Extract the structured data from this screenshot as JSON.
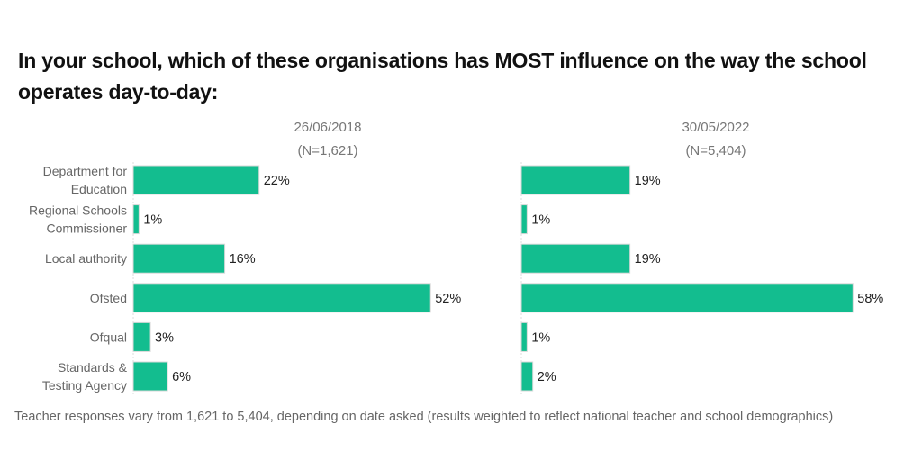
{
  "title": "In your school, which of these organisations has MOST influence on the way the school operates day-to-day:",
  "footer": "Teacher responses vary from 1,621 to 5,404, depending on date asked (results weighted to reflect national teacher and school demographics)",
  "colors": {
    "bar": "#13bd8f",
    "bar_border": "#d9d9d9"
  },
  "chart_data": [
    {
      "type": "bar",
      "orientation": "horizontal",
      "title": "26/06/2018",
      "subtitle": "(N=1,621)",
      "categories": [
        [
          "Department for",
          "Education"
        ],
        [
          "Regional Schools",
          "Commissioner"
        ],
        [
          "Local authority"
        ],
        [
          "Ofsted"
        ],
        [
          "Ofqual"
        ],
        [
          "Standards &",
          "Testing Agency"
        ]
      ],
      "values": [
        22,
        1,
        16,
        52,
        3,
        6
      ],
      "labels": [
        "22%",
        "1%",
        "16%",
        "52%",
        "3%",
        "6%"
      ],
      "unit": "%",
      "grid": false
    },
    {
      "type": "bar",
      "orientation": "horizontal",
      "title": "30/05/2022",
      "subtitle": "(N=5,404)",
      "categories": [
        [
          "Department for",
          "Education"
        ],
        [
          "Regional Schools",
          "Commissioner"
        ],
        [
          "Local authority"
        ],
        [
          "Ofsted"
        ],
        [
          "Ofqual"
        ],
        [
          "Standards &",
          "Testing Agency"
        ]
      ],
      "values": [
        19,
        1,
        19,
        58,
        1,
        2
      ],
      "labels": [
        "19%",
        "1%",
        "19%",
        "58%",
        "1%",
        "2%"
      ],
      "unit": "%",
      "grid": false
    }
  ]
}
